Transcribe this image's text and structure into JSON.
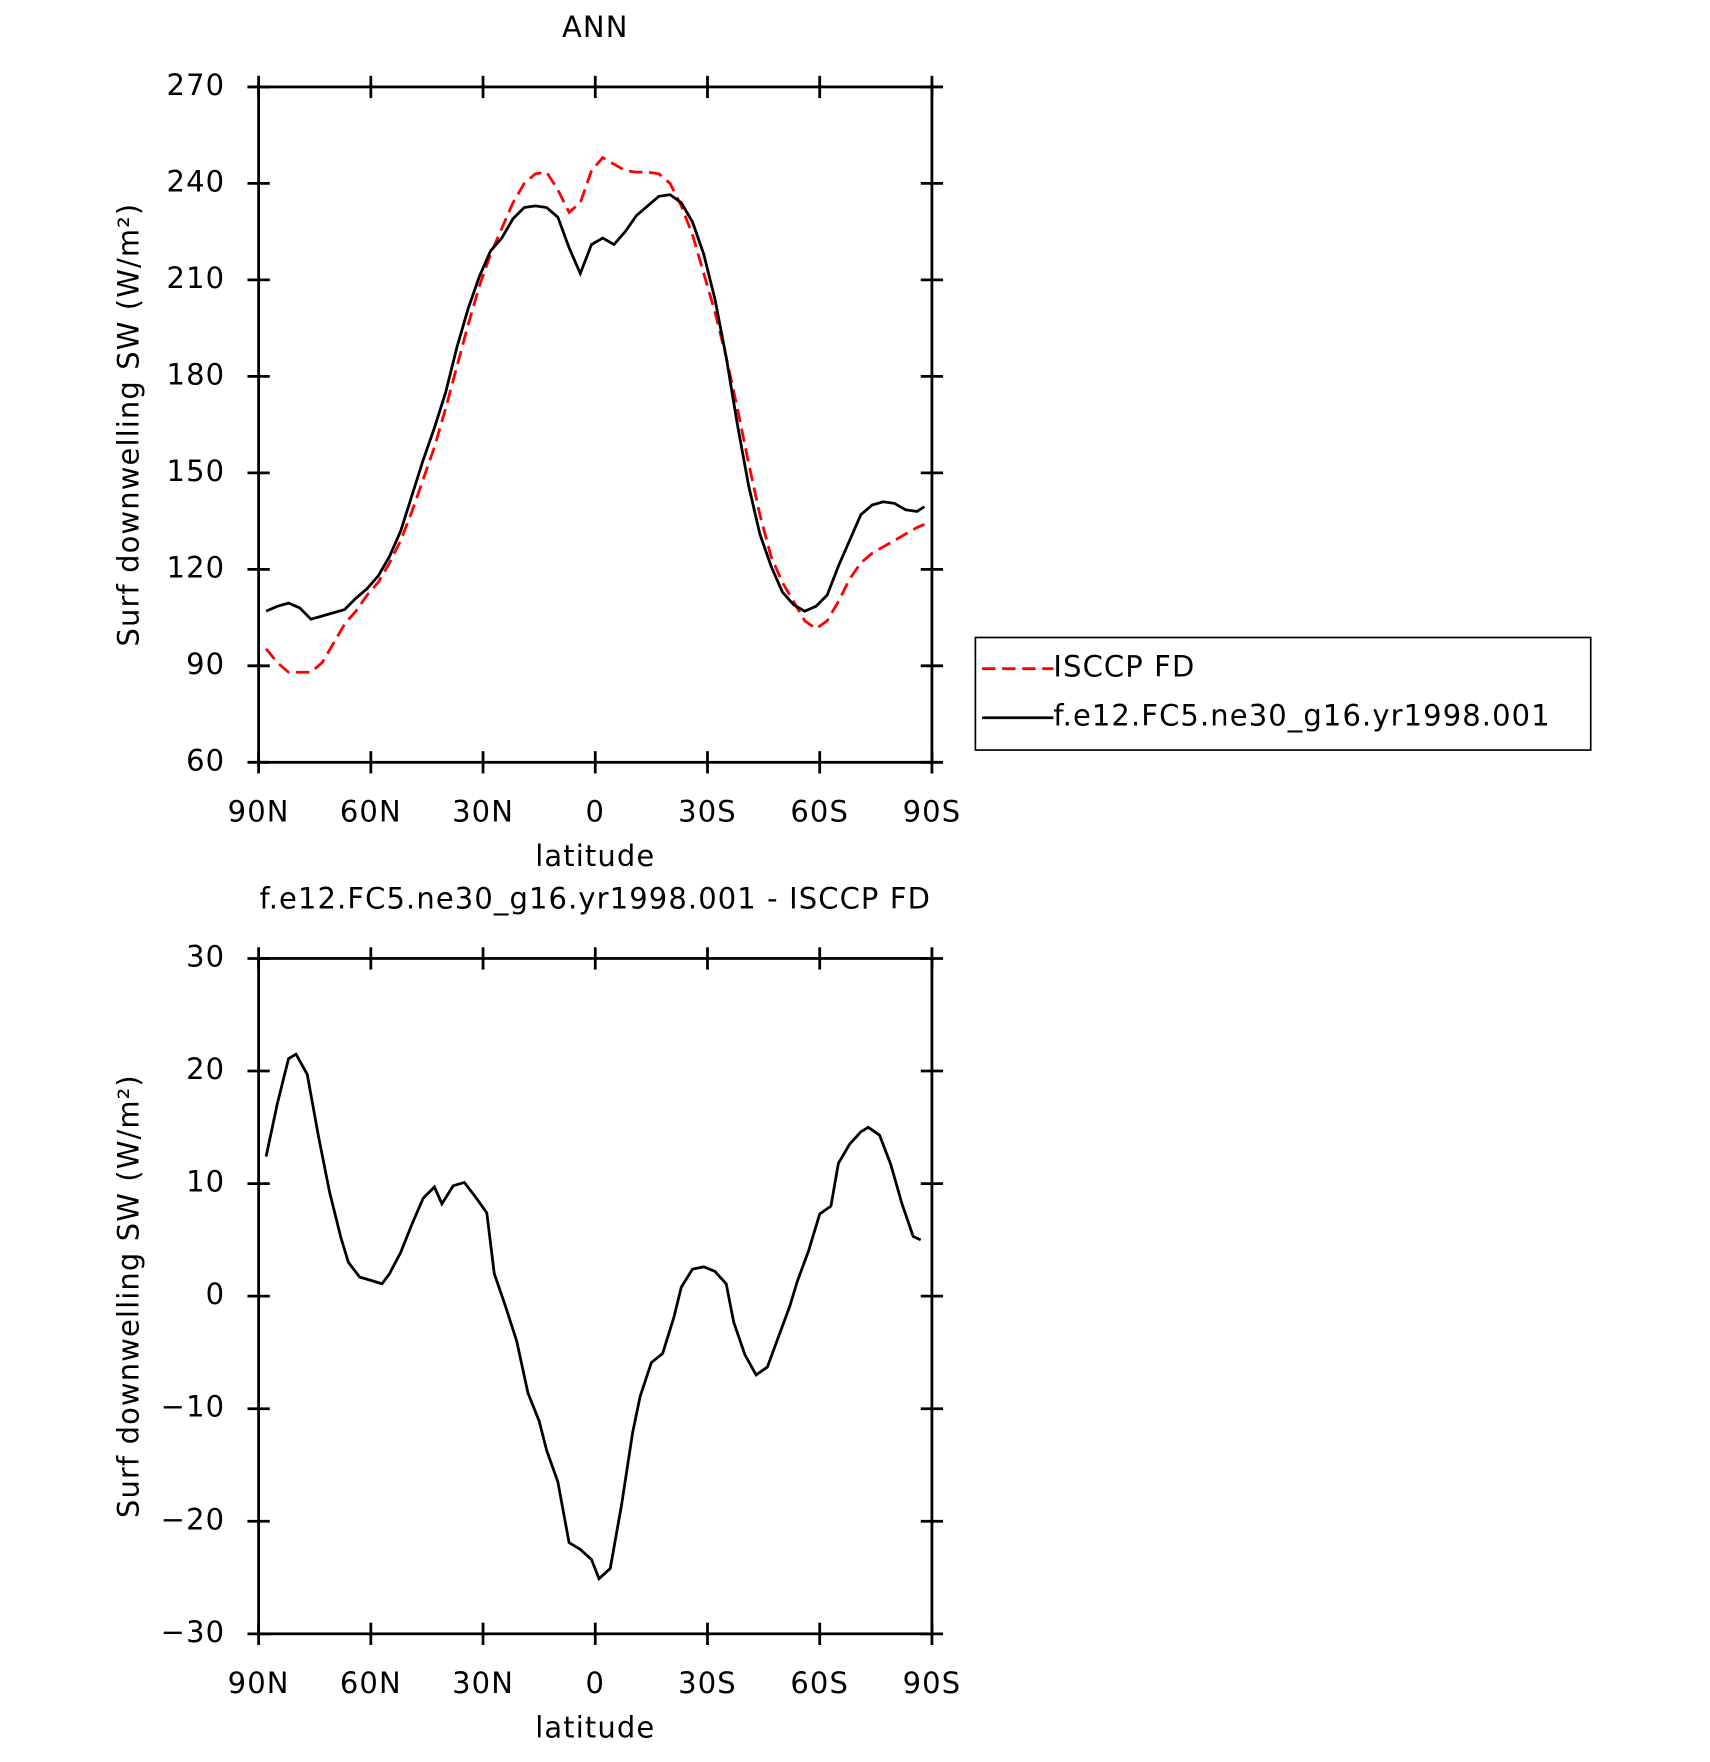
{
  "chart_data": [
    {
      "type": "line",
      "title": "ANN",
      "xlabel": "latitude",
      "ylabel": "Surf downwelling SW (W/m²)",
      "xlim": [
        90,
        -90
      ],
      "xticks": [
        {
          "value": 90,
          "label": "90N"
        },
        {
          "value": 60,
          "label": "60N"
        },
        {
          "value": 30,
          "label": "30N"
        },
        0,
        {
          "value": -30,
          "label": "30S"
        },
        {
          "value": -60,
          "label": "60S"
        },
        {
          "value": -90,
          "label": "90S"
        }
      ],
      "ylim": [
        60,
        270
      ],
      "yticks": [
        60,
        90,
        120,
        150,
        180,
        210,
        240,
        270
      ],
      "legend": "right",
      "x": [
        88,
        85,
        82,
        79,
        76,
        73,
        70,
        67,
        64,
        61,
        58,
        55,
        52,
        49,
        46,
        43,
        40,
        37,
        34,
        31,
        28,
        25,
        22,
        19,
        16,
        13,
        10,
        7,
        4,
        1,
        -2,
        -5,
        -8,
        -11,
        -14,
        -17,
        -20,
        -23,
        -26,
        -29,
        -32,
        -35,
        -38,
        -41,
        -44,
        -47,
        -50,
        -53,
        -56,
        -59,
        -62,
        -65,
        -68,
        -71,
        -74,
        -77,
        -80,
        -83,
        -86,
        -88
      ],
      "series": [
        {
          "name": "ISCCP FD",
          "color": "#ff0000",
          "dashed": true,
          "values": [
            95.3,
            91,
            88,
            88,
            88,
            91,
            97,
            103,
            107,
            112,
            116,
            122,
            129,
            138,
            148,
            158,
            170,
            183,
            196,
            208,
            218,
            226,
            234,
            240,
            243,
            243.5,
            238,
            231,
            234,
            244,
            248,
            246,
            244,
            243.5,
            243.5,
            243,
            240,
            233,
            224,
            212,
            200,
            186,
            170,
            153,
            137,
            124,
            116,
            110,
            104,
            101.5,
            104,
            110,
            117,
            122,
            125,
            127,
            129,
            131,
            133,
            134
          ]
        },
        {
          "name": "f.e12.FC5.ne30_g16.yr1998.001",
          "color": "#000000",
          "dashed": false,
          "values": [
            107,
            108.5,
            109.5,
            108,
            104.5,
            105.5,
            106.5,
            107.5,
            111,
            114,
            118,
            124,
            132,
            143,
            154,
            164,
            175,
            189,
            201,
            211,
            219,
            223,
            229,
            232.5,
            233,
            232.5,
            229.5,
            220,
            212,
            221,
            223,
            221,
            225,
            230,
            233,
            236,
            236.5,
            234,
            228,
            218,
            204,
            186,
            165,
            146,
            131,
            121,
            113,
            109,
            107,
            108.5,
            112,
            121,
            129,
            137,
            140,
            141,
            140.5,
            138.5,
            138,
            139.5
          ]
        }
      ]
    },
    {
      "type": "line",
      "title": "f.e12.FC5.ne30_g16.yr1998.001 - ISCCP FD",
      "xlabel": "latitude",
      "ylabel": "Surf downwelling SW (W/m²)",
      "xlim": [
        90,
        -90
      ],
      "xticks": [
        {
          "value": 90,
          "label": "90N"
        },
        {
          "value": 60,
          "label": "60N"
        },
        {
          "value": 30,
          "label": "30N"
        },
        0,
        {
          "value": -30,
          "label": "30S"
        },
        {
          "value": -60,
          "label": "60S"
        },
        {
          "value": -90,
          "label": "90S"
        }
      ],
      "ylim": [
        -30,
        30
      ],
      "yticks": [
        {
          "value": -30,
          "label": "−30"
        },
        {
          "value": -20,
          "label": "−20"
        },
        {
          "value": -10,
          "label": "−10"
        },
        0,
        10,
        20,
        30
      ],
      "x": [
        88,
        85,
        82,
        80,
        77,
        74,
        71,
        68,
        66,
        63,
        57,
        55,
        52,
        49,
        46,
        43,
        41,
        38,
        35,
        32,
        29,
        27,
        24,
        21,
        18,
        15,
        13,
        10,
        7,
        4,
        1,
        -1,
        -4,
        -7,
        -10,
        -12,
        -15,
        -18,
        -21,
        -23,
        -26,
        -29,
        -32,
        -35,
        -37,
        -40,
        -43,
        -46,
        -49,
        -52,
        -54,
        -57,
        -60,
        -63,
        -65,
        -68,
        -71,
        -73,
        -76,
        -79,
        -82,
        -85,
        -87
      ],
      "color": "#000000",
      "values": [
        12.4,
        17.1,
        21.1,
        21.5,
        19.7,
        14.2,
        9.2,
        5.2,
        3,
        1.7,
        1.1,
        2,
        3.9,
        6.4,
        8.7,
        9.7,
        8.2,
        9.8,
        10.1,
        8.8,
        7.4,
        2,
        -0.9,
        -4,
        -8.6,
        -11.1,
        -13.7,
        -16.5,
        -21.9,
        -22.5,
        -23.4,
        -25.1,
        -24.2,
        -18.6,
        -12.1,
        -8.9,
        -5.9,
        -5.1,
        -1.9,
        0.8,
        2.4,
        2.6,
        2.2,
        1.1,
        -2.3,
        -5.2,
        -7,
        -6.3,
        -3.6,
        -0.9,
        1.3,
        4,
        7.3,
        8,
        11.8,
        13.5,
        14.6,
        15,
        14.3,
        11.7,
        8.2,
        5.3,
        5
      ]
    }
  ]
}
